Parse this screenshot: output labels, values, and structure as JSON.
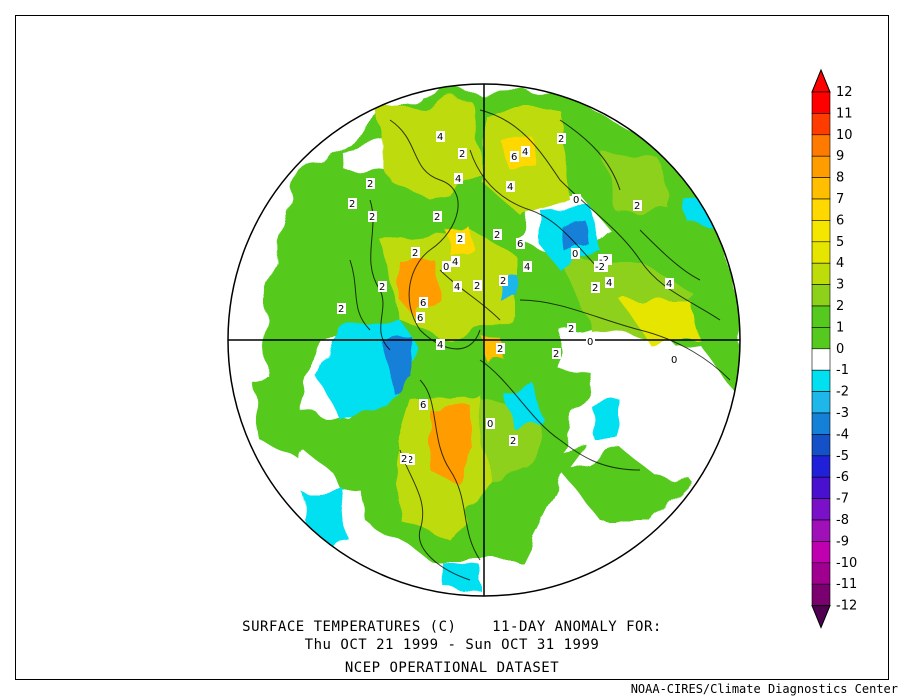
{
  "title_line1": "SURFACE TEMPERATURES (C)    11-DAY ANOMALY FOR:",
  "title_line2": "Thu OCT 21 1999 - Sun OCT 31 1999",
  "dataset": "NCEP OPERATIONAL DATASET",
  "credit": "NOAA-CIRES/Climate Diagnostics Center",
  "colorbar": {
    "levels": [
      {
        "label": "12",
        "color": "#ff0000"
      },
      {
        "label": "11",
        "color": "#ff3c00"
      },
      {
        "label": "10",
        "color": "#ff7a00"
      },
      {
        "label": "9",
        "color": "#ff9d00"
      },
      {
        "label": "8",
        "color": "#ffbe00"
      },
      {
        "label": "7",
        "color": "#ffd800"
      },
      {
        "label": "6",
        "color": "#f5e600"
      },
      {
        "label": "5",
        "color": "#e5e500"
      },
      {
        "label": "4",
        "color": "#bedc0a"
      },
      {
        "label": "3",
        "color": "#8ed11a"
      },
      {
        "label": "2",
        "color": "#55c91e"
      },
      {
        "label": "1",
        "color": "#ffffff"
      },
      {
        "label": "0",
        "color": "#ffffff"
      },
      {
        "label": "-1",
        "color": "#00e0f0"
      },
      {
        "label": "-2",
        "color": "#1fb7ea"
      },
      {
        "label": "-3",
        "color": "#1480d8"
      },
      {
        "label": "-4",
        "color": "#1450c8"
      },
      {
        "label": "-5",
        "color": "#2020d8"
      },
      {
        "label": "-6",
        "color": "#4a10d0"
      },
      {
        "label": "-7",
        "color": "#7a10c8"
      },
      {
        "label": "-8",
        "color": "#a010b8"
      },
      {
        "label": "-9",
        "color": "#c000b0"
      },
      {
        "label": "-10",
        "color": "#a00090"
      },
      {
        "label": "-11",
        "color": "#7a0070"
      },
      {
        "label": "-12",
        "color": "#500050"
      }
    ]
  },
  "contour_labels": [
    "4",
    "2",
    "2",
    "4",
    "6",
    "4",
    "2",
    "4",
    "0",
    "2",
    "2",
    "2",
    "2",
    "6",
    "2",
    "2",
    "4",
    "4",
    "0",
    "2",
    "2",
    "0",
    "2",
    "2",
    "4",
    "6",
    "2",
    "2",
    "4",
    "6",
    "2",
    "0",
    "2",
    "2",
    "4",
    "4",
    "2",
    "6",
    "2",
    "2",
    "2",
    "0",
    "-2",
    "-2",
    "0"
  ]
}
